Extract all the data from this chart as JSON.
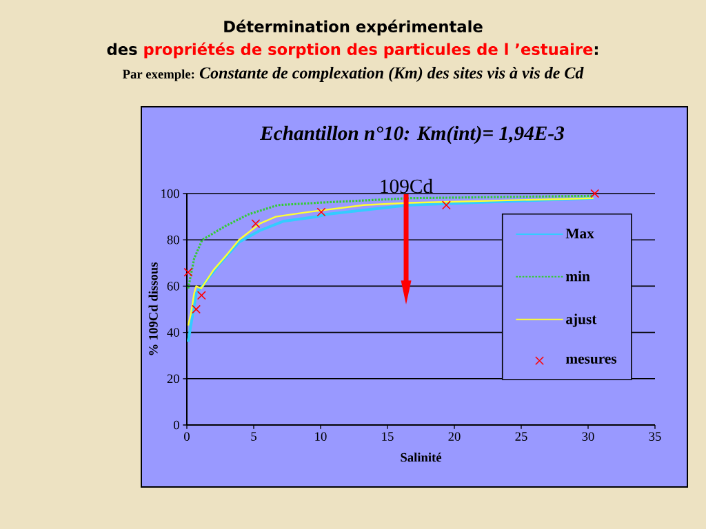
{
  "chart_data": {
    "type": "line",
    "title": "Echantillon n°10: Km(int)= 1,94E-3",
    "xlabel": "Salinité",
    "ylabel": "% 109Cd dissous",
    "annotations": [
      "Détermination expérimentale",
      "des",
      "propriétés de sorption des particules de l ’estuaire",
      ":",
      "Par exemple:",
      "Constante de complexation (Km) des sites vis à vis de Cd",
      "109Cd"
    ],
    "series": [
      {
        "name": "Max",
        "color": "#33ccff",
        "marker": "none",
        "line_style": "solid",
        "x": [
          0.1,
          0.7,
          1.15,
          2.5,
          3.9,
          5.45,
          7.2,
          9.75,
          10.4,
          16.6,
          30.4
        ],
        "values": [
          36,
          57,
          60,
          70,
          79,
          84,
          88,
          90,
          91,
          95,
          98
        ]
      },
      {
        "name": "min",
        "color": "#33cc33",
        "marker": "none",
        "line_style": "dotted",
        "x": [
          0.1,
          0.55,
          1.15,
          2.9,
          4.6,
          6.8,
          9.75,
          16.6,
          30.4
        ],
        "values": [
          59,
          72,
          80,
          86,
          91,
          95,
          96,
          98,
          99
        ]
      },
      {
        "name": "ajust",
        "color": "#ffff33",
        "marker": "none",
        "line_style": "solid",
        "x": [
          0.1,
          0.3,
          0.55,
          0.7,
          1.07,
          2.0,
          3.05,
          3.9,
          5.45,
          6.65,
          9.05,
          13.2,
          16.6,
          30.4
        ],
        "values": [
          43,
          48,
          57,
          60,
          59,
          67,
          74,
          80,
          87,
          90,
          92,
          95,
          96,
          98
        ]
      },
      {
        "name": "mesures",
        "color": "#ff0000",
        "type": "scatter",
        "marker": "cross",
        "x": [
          0.1,
          0.7,
          1.1,
          5.15,
          10.05,
          19.4,
          30.5
        ],
        "values": [
          66,
          50,
          56,
          87,
          92,
          95,
          100
        ]
      }
    ],
    "xlim": [
      0,
      35
    ],
    "xticks": [
      0,
      5,
      10,
      15,
      20,
      25,
      30,
      35
    ],
    "ylim": [
      0,
      100
    ],
    "yticks": [
      0,
      20,
      40,
      60,
      80,
      100
    ],
    "grid": "y",
    "legend": "right"
  }
}
